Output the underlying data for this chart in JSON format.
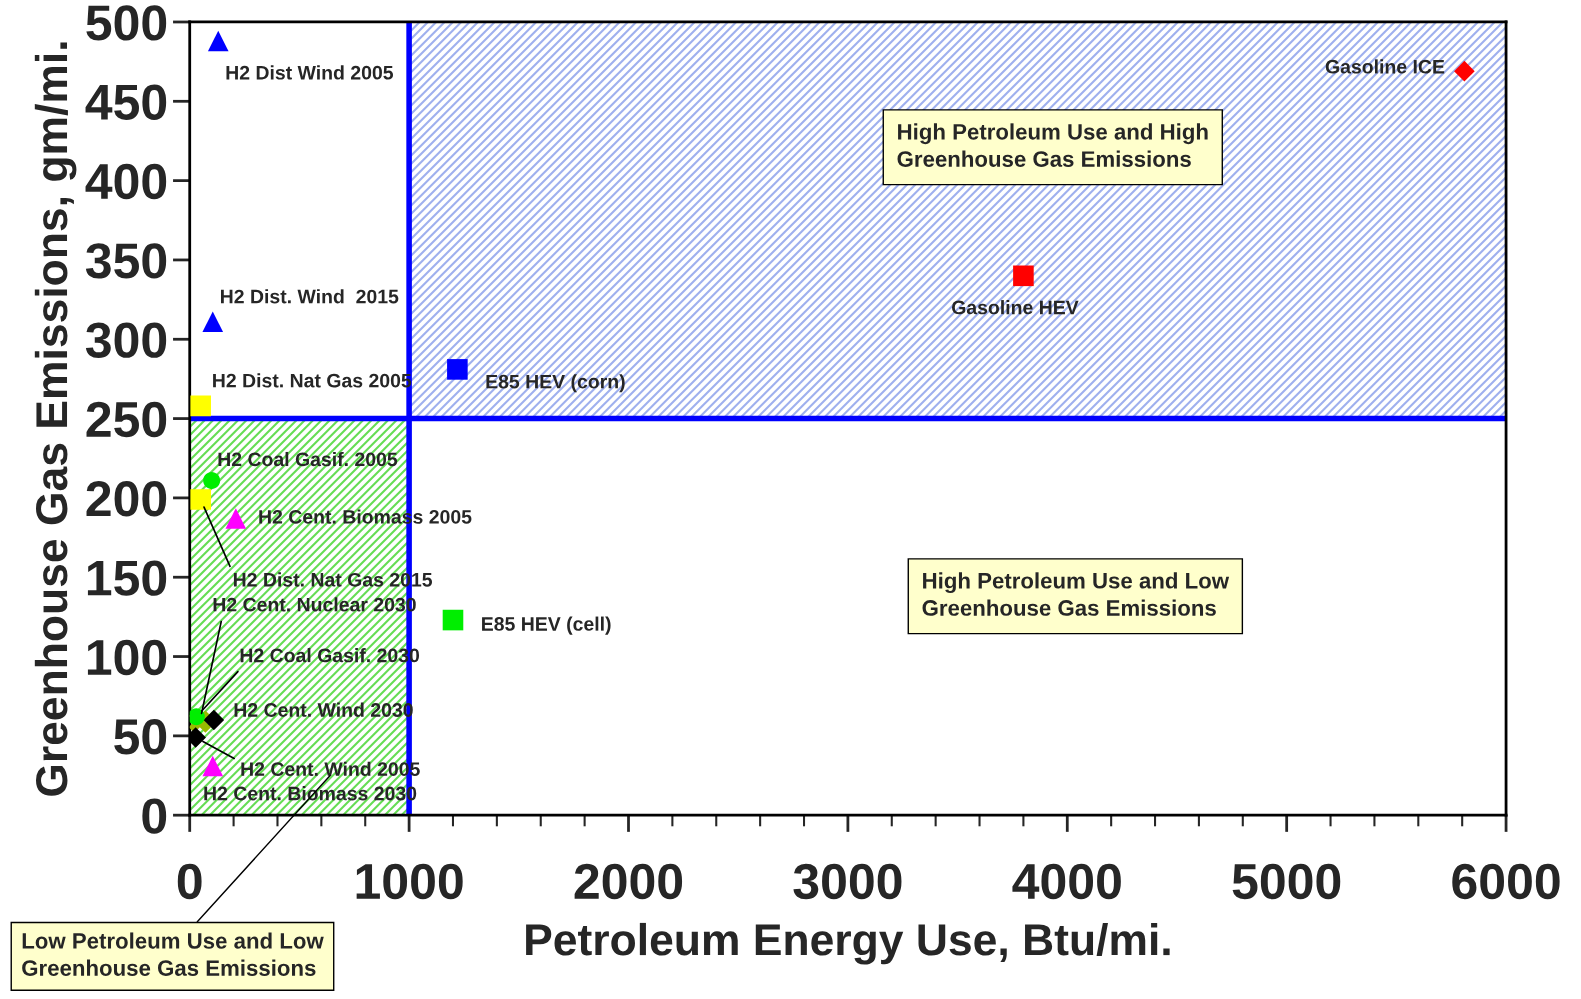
{
  "chart_data": {
    "type": "scatter",
    "xlabel": "Petroleum Energy Use, Btu/mi.",
    "ylabel": "Greenhouse Gas Emissions, gm/mi.",
    "xlim": [
      0,
      6000
    ],
    "ylim": [
      0,
      500
    ],
    "xticks": [
      0,
      1000,
      2000,
      3000,
      4000,
      5000,
      6000
    ],
    "yticks": [
      0,
      50,
      100,
      150,
      200,
      250,
      300,
      350,
      400,
      450,
      500
    ],
    "grid": false,
    "legend": false,
    "series": [
      {
        "name": "H2 Dist Wind 2005",
        "color": "#0000ff",
        "marker": "triangle",
        "x": [
          130
        ],
        "values": [
          488
        ]
      },
      {
        "name": "H2 Dist. Wind  2015",
        "color": "#0000ff",
        "marker": "triangle",
        "x": [
          105
        ],
        "values": [
          311
        ]
      },
      {
        "name": "H2 Dist. Nat Gas 2005",
        "color": "#ffff00",
        "marker": "square",
        "x": [
          50
        ],
        "values": [
          258
        ]
      },
      {
        "name": "E85 HEV (corn)",
        "color": "#0000ff",
        "marker": "square",
        "x": [
          1220
        ],
        "values": [
          281
        ]
      },
      {
        "name": "Gasoline HEV",
        "color": "#ff0000",
        "marker": "square",
        "x": [
          3800
        ],
        "values": [
          340
        ]
      },
      {
        "name": "Gasoline ICE",
        "color": "#ff0000",
        "marker": "diamond",
        "x": [
          5810
        ],
        "values": [
          469
        ]
      },
      {
        "name": "H2 Coal Gasif. 2005",
        "color": "#00ee00",
        "marker": "circle",
        "x": [
          100
        ],
        "values": [
          211
        ]
      },
      {
        "name": "H2 Dist. Nat Gas 2015",
        "color": "#ffff00",
        "marker": "square",
        "x": [
          50
        ],
        "values": [
          199
        ]
      },
      {
        "name": "H2 Cent. Biomass 2005",
        "color": "#ff00ff",
        "marker": "triangle",
        "x": [
          210
        ],
        "values": [
          187
        ]
      },
      {
        "name": "E85 HEV (cell)",
        "color": "#00ee00",
        "marker": "square",
        "x": [
          1200
        ],
        "values": [
          123
        ]
      },
      {
        "name": "H2 Cent. Nuclear 2030",
        "color": "#99bb00",
        "marker": "cross",
        "x": [
          46
        ],
        "values": [
          59
        ]
      },
      {
        "name": "H2 Coal Gasif. 2030",
        "color": "#00ee00",
        "marker": "circle",
        "x": [
          30
        ],
        "values": [
          62
        ]
      },
      {
        "name": "H2 Cent. Wind 2030",
        "color": "#000000",
        "marker": "diamond",
        "x": [
          110
        ],
        "values": [
          60
        ]
      },
      {
        "name": "H2 Cent. Wind 2005",
        "color": "#000000",
        "marker": "diamond",
        "x": [
          27
        ],
        "values": [
          49
        ]
      },
      {
        "name": "H2 Cent. Biomass 2030",
        "color": "#ff00ff",
        "marker": "triangle",
        "x": [
          105
        ],
        "values": [
          31
        ]
      }
    ],
    "ref_lines": [
      {
        "axis": "x",
        "value": 1000,
        "color": "#0000ff"
      },
      {
        "axis": "y",
        "value": 250,
        "color": "#0000ff"
      }
    ],
    "bands": [
      {
        "axis": "y",
        "from": 250,
        "to": 500,
        "color": "#9fb0ee",
        "label": "High Petroleum Use and High\nGreenhouse Gas Emissions"
      },
      {
        "axis": "x",
        "from": 0,
        "to": 1000,
        "color": "#66dd55",
        "label": "Low Petroleum Use and Low\nGreenhouse Gas Emissions"
      }
    ],
    "annotations": [
      "High Petroleum Use and Low\nGreenhouse Gas Emissions"
    ]
  }
}
